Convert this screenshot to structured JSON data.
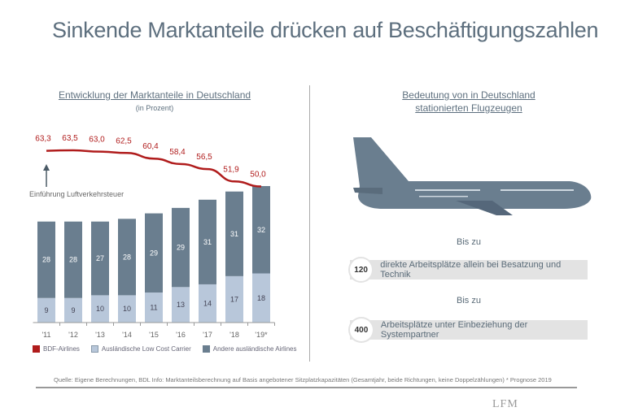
{
  "title": "Sinkende Marktanteile drücken auf Beschäftigungszahlen",
  "left": {
    "heading": "Entwicklung der Marktanteile in Deutschland",
    "subheading": "(in Prozent)",
    "annotation": "Einführung Luftverkehrsteuer"
  },
  "chart_data": {
    "type": "bar",
    "title": "Entwicklung der Marktanteile in Deutschland",
    "subtitle": "(in Prozent)",
    "categories": [
      "'11",
      "'12",
      "'13",
      "'14",
      "'15",
      "'16",
      "'17",
      "'18",
      "'19*"
    ],
    "series": [
      {
        "name": "BDF-Airlines",
        "type": "line",
        "color": "#b01c1c",
        "values": [
          63.3,
          63.5,
          63.0,
          62.5,
          60.4,
          58.4,
          56.5,
          51.9,
          50.0
        ],
        "labels": [
          "63,3",
          "63,5",
          "63,0",
          "62,5",
          "60,4",
          "58,4",
          "56,5",
          "51,9",
          "50,0"
        ]
      },
      {
        "name": "Ausländische Low Cost Carrier",
        "type": "stacked-bar",
        "color": "#b8c7da",
        "values": [
          9,
          9,
          10,
          10,
          11,
          13,
          14,
          17,
          18
        ]
      },
      {
        "name": "Andere ausländische Airlines",
        "type": "stacked-bar",
        "color": "#6a7e8f",
        "values": [
          28,
          28,
          27,
          28,
          29,
          29,
          31,
          31,
          32
        ]
      }
    ],
    "legend": "bottom"
  },
  "right": {
    "heading1": "Bedeutung von in Deutschland",
    "heading2": "stationierten Flugzeugen",
    "items": [
      {
        "prefix": "Bis zu",
        "value": "120",
        "text": "direkte Arbeitsplätze allein bei Besatzung und Technik"
      },
      {
        "prefix": "Bis zu",
        "value": "400",
        "text": "Arbeitsplätze unter Einbeziehung der Systempartner"
      }
    ]
  },
  "footer": {
    "source": "Quelle: Eigene Berechnungen, BDL    Info: Marktanteilsberechnung auf Basis angebotener Sitzplatzkapazitäten (Gesamtjahr, beide Richtungen, keine Doppelzählungen)    * Prognose 2019",
    "logo": "LFM"
  }
}
